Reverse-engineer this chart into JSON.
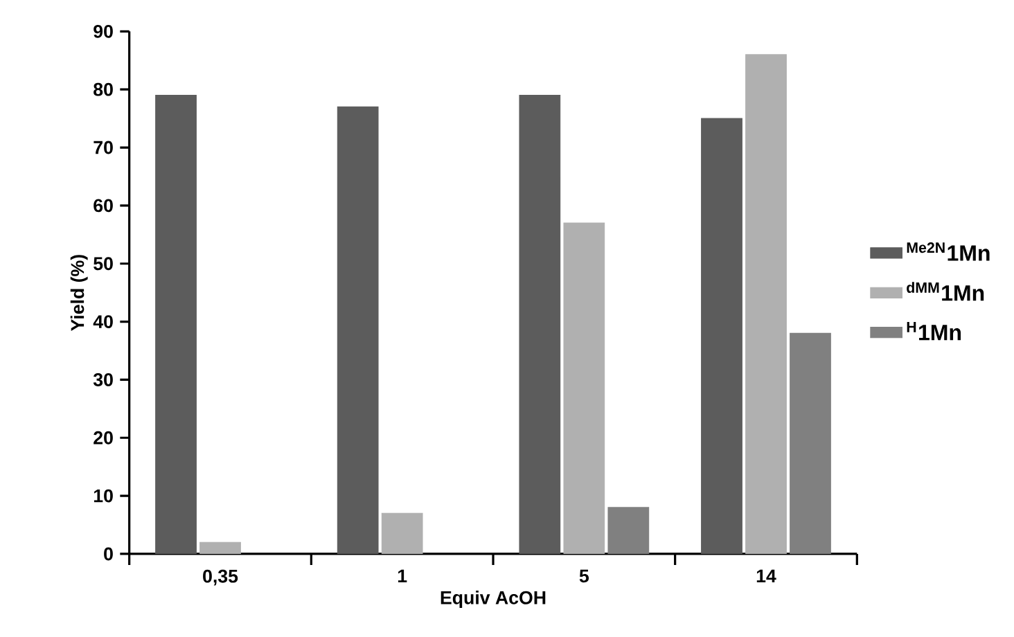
{
  "chart_data": {
    "type": "bar",
    "xlabel": "Equiv AcOH",
    "ylabel": "Yield (%)",
    "categories": [
      "0,35",
      "1",
      "5",
      "14"
    ],
    "series": [
      {
        "name": "$^{Me2N}$1Mn",
        "color": "#5c5c5c",
        "values": [
          79,
          77,
          79,
          75
        ]
      },
      {
        "name": "$^{dMM}$1Mn",
        "color": "#b0b0b0",
        "values": [
          2,
          7,
          57,
          86
        ]
      },
      {
        "name": "$^{H}$1Mn",
        "color": "#808080",
        "values": [
          null,
          null,
          8,
          38
        ]
      }
    ],
    "ylim": [
      0,
      90
    ],
    "yticks": [
      0,
      10,
      20,
      30,
      40,
      50,
      60,
      70,
      80,
      90
    ],
    "legend": "right"
  }
}
